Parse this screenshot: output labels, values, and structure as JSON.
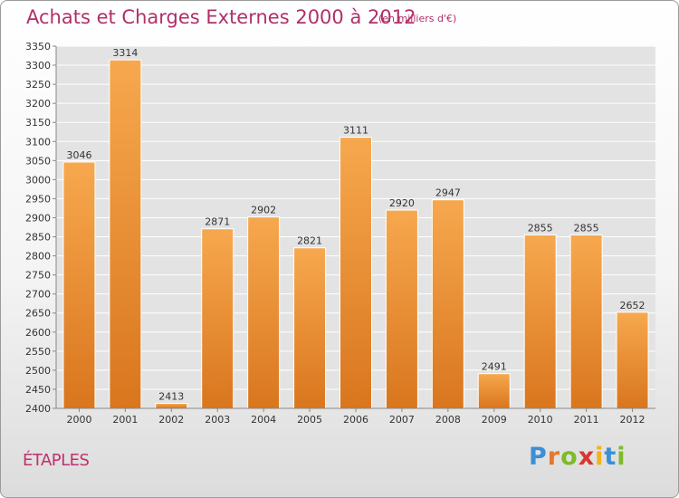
{
  "chart_data": {
    "type": "bar",
    "title": "Achats et Charges Externes 2000 à 2012",
    "subtitle": "(en milliers d'€)",
    "categories": [
      "2000",
      "2001",
      "2002",
      "2003",
      "2004",
      "2005",
      "2006",
      "2007",
      "2008",
      "2009",
      "2010",
      "2011",
      "2012"
    ],
    "values": [
      3046,
      3314,
      2413,
      2871,
      2902,
      2821,
      3111,
      2920,
      2947,
      2491,
      2855,
      2855,
      2652
    ],
    "ylim": [
      2400,
      3350
    ],
    "yticks": [
      2400,
      2450,
      2500,
      2550,
      2600,
      2650,
      2700,
      2750,
      2800,
      2850,
      2900,
      2950,
      3000,
      3050,
      3100,
      3150,
      3200,
      3250,
      3300,
      3350
    ],
    "grid": true,
    "bar_color_top": "#f7a84e",
    "bar_color_bottom": "#d9761e"
  },
  "footer": {
    "city": "ÉTAPLES",
    "logo_letters": [
      "P",
      "r",
      "o",
      "x",
      "i",
      "t",
      "i"
    ],
    "logo_colors": [
      "#3b8fd4",
      "#e8772a",
      "#7dbb2a",
      "#d9362b",
      "#f2b21b",
      "#3b8fd4",
      "#7dbb2a"
    ]
  },
  "colors": {
    "title": "#b0306a",
    "grid": "#ffffff",
    "plot_bg": "#e3e3e3"
  }
}
